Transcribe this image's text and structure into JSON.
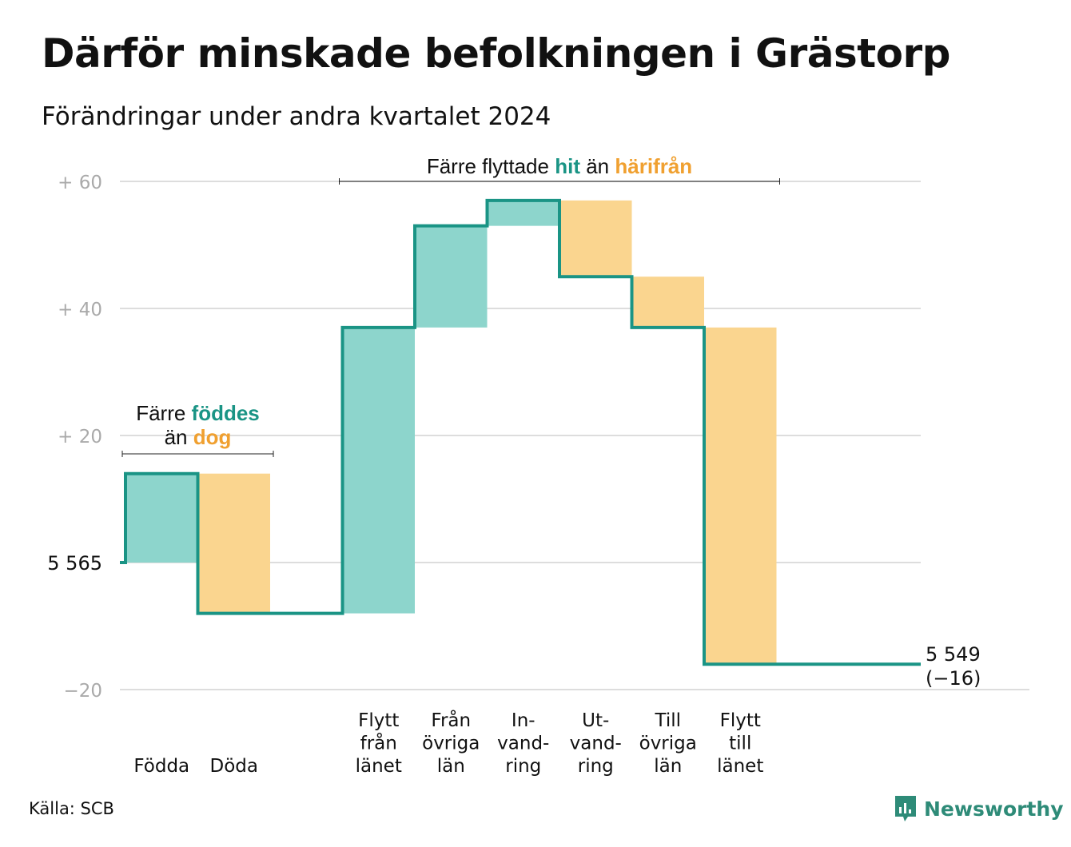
{
  "header": {
    "title": "Därför minskade befolkningen i Grästorp",
    "subtitle": "Förändringar under andra kvartalet 2024"
  },
  "footer": {
    "source": "Källa: SCB",
    "logo_text": "Newsworthy"
  },
  "colors": {
    "increase": "#8dd5cc",
    "decrease": "#fad58f",
    "line": "#1a9485",
    "teal_text": "#1a9485",
    "orange_text": "#f0a030",
    "grid": "#dddddd",
    "tick": "#aaaaaa"
  },
  "chart_data": {
    "type": "bar",
    "subtype": "waterfall",
    "start_value": 5565,
    "start_label": "5 565",
    "end_value": 5549,
    "end_label": "5 549",
    "end_change_label": "(−16)",
    "y_ticks": [
      {
        "value": 60,
        "label": "+  60"
      },
      {
        "value": 40,
        "label": "+  40"
      },
      {
        "value": 20,
        "label": "+  20"
      },
      {
        "value": -20,
        "label": "−20"
      }
    ],
    "ylim": [
      -20,
      60
    ],
    "grid": true,
    "steps": [
      {
        "name": "Födda",
        "label_lines": [
          "Födda"
        ],
        "change": 14
      },
      {
        "name": "Döda",
        "label_lines": [
          "Döda"
        ],
        "change": -22
      },
      {
        "name": "Flytt från länet",
        "label_lines": [
          "Flytt",
          "från",
          "länet"
        ],
        "change": 45
      },
      {
        "name": "Från övriga län",
        "label_lines": [
          "Från",
          "övriga",
          "län"
        ],
        "change": 16
      },
      {
        "name": "Invandring",
        "label_lines": [
          "In-",
          "vand-",
          "ring"
        ],
        "change": 4
      },
      {
        "name": "Utvandring",
        "label_lines": [
          "Ut-",
          "vand-",
          "ring"
        ],
        "change": -12
      },
      {
        "name": "Till övriga län",
        "label_lines": [
          "Till",
          "övriga",
          "län"
        ],
        "change": -8
      },
      {
        "name": "Flytt till länet",
        "label_lines": [
          "Flytt",
          "till",
          "länet"
        ],
        "change": -53
      }
    ],
    "annotations": [
      {
        "parts": [
          {
            "text": "Färre ",
            "style": "plain"
          },
          {
            "text": "föddes",
            "style": "teal"
          }
        ],
        "parts2": [
          {
            "text": "än ",
            "style": "plain"
          },
          {
            "text": "dog",
            "style": "orange"
          }
        ]
      },
      {
        "parts": [
          {
            "text": "Färre flyttade ",
            "style": "plain"
          },
          {
            "text": "hit",
            "style": "teal"
          },
          {
            "text": "  än ",
            "style": "plain"
          },
          {
            "text": "härifrån",
            "style": "orange"
          }
        ]
      }
    ]
  }
}
